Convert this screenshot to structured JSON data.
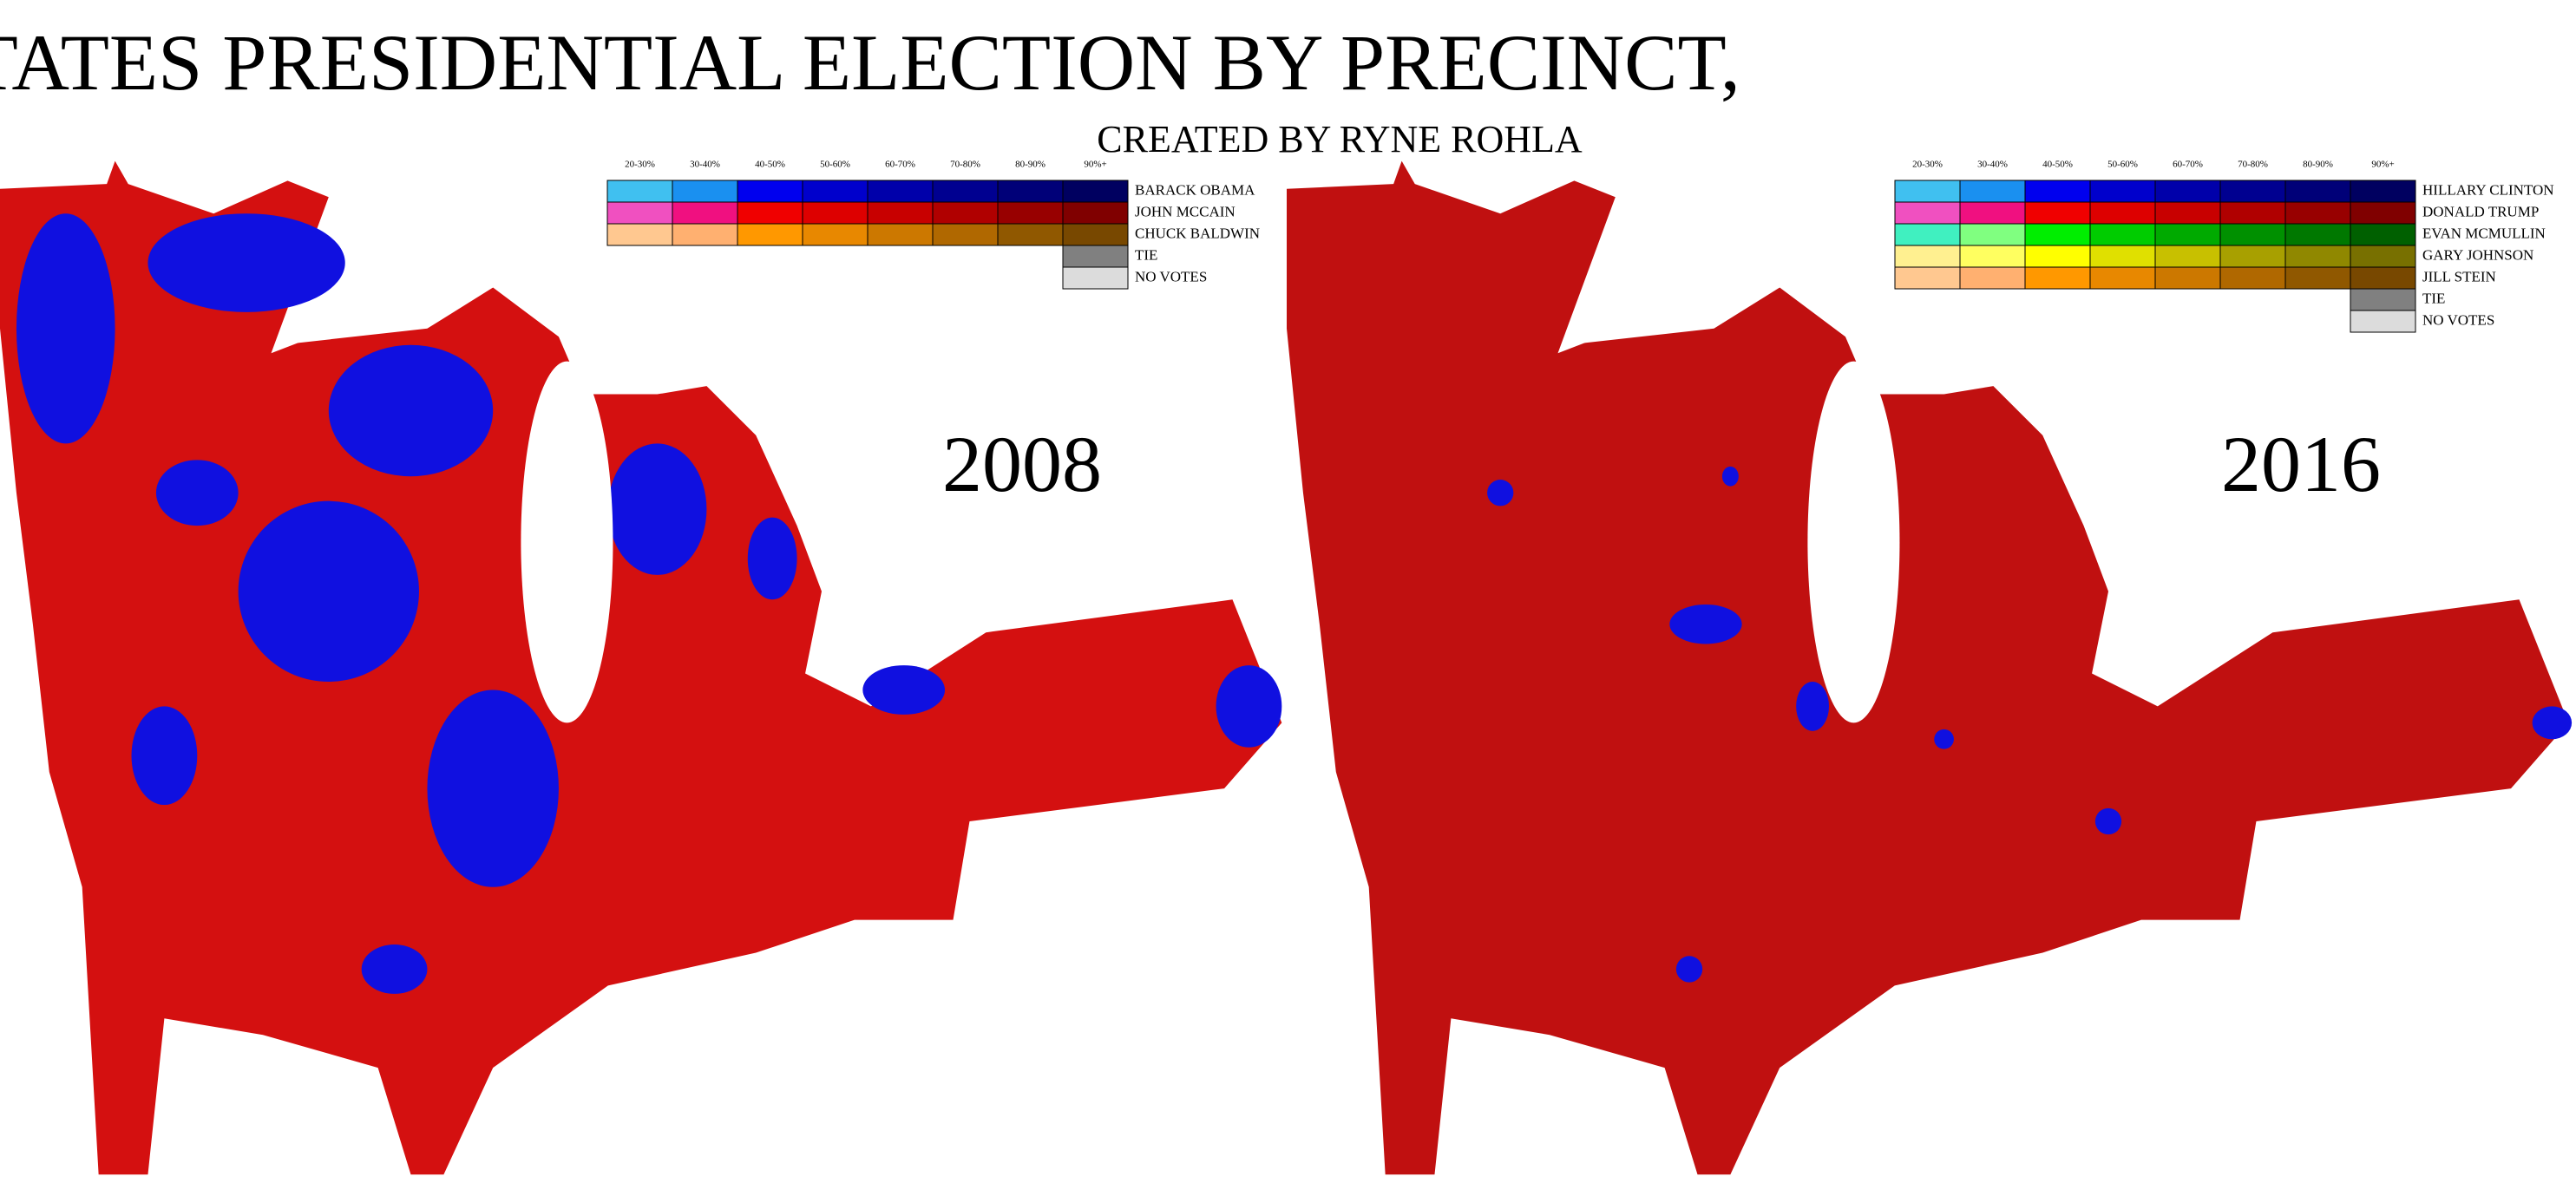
{
  "title": "UNITED STATES PRESIDENTIAL ELECTION BY PRECINCT,",
  "subtitle": "CREATED BY RYNE ROHLA",
  "maps": [
    {
      "year": "2008",
      "legend": {
        "bins": [
          "20-30%",
          "30-40%",
          "40-50%",
          "50-60%",
          "60-70%",
          "70-80%",
          "80-90%",
          "90%+"
        ],
        "rows": [
          {
            "name": "BARACK OBAMA",
            "colors": [
              "#40c0f0",
              "#1a90f0",
              "#0000ee",
              "#0000cc",
              "#0000aa",
              "#000090",
              "#000078",
              "#000060"
            ]
          },
          {
            "name": "JOHN MCCAIN",
            "colors": [
              "#f050c0",
              "#f01080",
              "#f00000",
              "#dd0000",
              "#c80000",
              "#b00000",
              "#980000",
              "#800000"
            ]
          },
          {
            "name": "CHUCK BALDWIN",
            "colors": [
              "#ffc890",
              "#ffb070",
              "#ff9800",
              "#e88800",
              "#cc7800",
              "#b06800",
              "#905800",
              "#784800"
            ]
          }
        ],
        "tie": {
          "name": "TIE",
          "color": "#808080"
        },
        "none": {
          "name": "NO VOTES",
          "color": "#dcdcdc"
        }
      }
    },
    {
      "year": "2016",
      "legend": {
        "bins": [
          "20-30%",
          "30-40%",
          "40-50%",
          "50-60%",
          "60-70%",
          "70-80%",
          "80-90%",
          "90%+"
        ],
        "rows": [
          {
            "name": "HILLARY CLINTON",
            "colors": [
              "#40c0f0",
              "#1a90f0",
              "#0000ee",
              "#0000cc",
              "#0000aa",
              "#000090",
              "#000078",
              "#000060"
            ]
          },
          {
            "name": "DONALD TRUMP",
            "colors": [
              "#f050c0",
              "#f01080",
              "#f00000",
              "#dd0000",
              "#c80000",
              "#b00000",
              "#980000",
              "#800000"
            ]
          },
          {
            "name": "EVAN MCMULLIN",
            "colors": [
              "#40f0c0",
              "#80ff80",
              "#00ee00",
              "#00cc00",
              "#00aa00",
              "#009000",
              "#007800",
              "#006000"
            ]
          },
          {
            "name": "GARY JOHNSON",
            "colors": [
              "#fff090",
              "#ffff60",
              "#ffff00",
              "#e0e000",
              "#c8c000",
              "#a8a000",
              "#908800",
              "#787000"
            ]
          },
          {
            "name": "JILL STEIN",
            "colors": [
              "#ffc890",
              "#ffb070",
              "#ff9800",
              "#e88800",
              "#cc7800",
              "#b06800",
              "#905800",
              "#784800"
            ]
          }
        ],
        "tie": {
          "name": "TIE",
          "color": "#808080"
        },
        "none": {
          "name": "NO VOTES",
          "color": "#dcdcdc"
        }
      }
    }
  ]
}
